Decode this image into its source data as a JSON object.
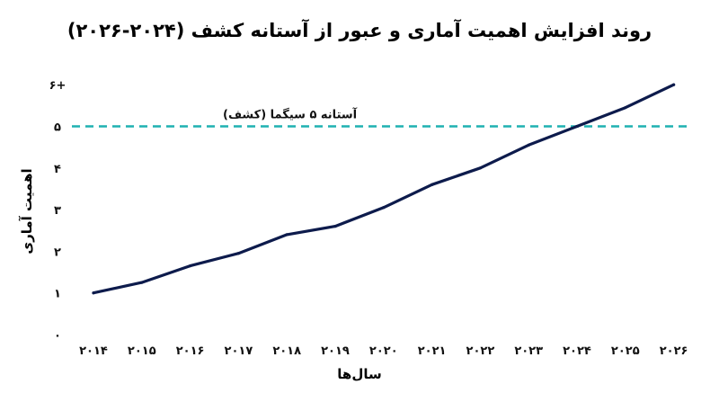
{
  "chart_data": {
    "type": "line",
    "title": "روند افزایش اهمیت آماری و عبور از آستانه کشف (۲۰۲۴-۲۰۲۶)",
    "xlabel": "سال‌ها",
    "ylabel": "اهمیت آماری",
    "x": [
      2014,
      2015,
      2016,
      2017,
      2018,
      2019,
      2020,
      2021,
      2022,
      2023,
      2024,
      2025,
      2026
    ],
    "x_tick_labels": [
      "۲۰۱۴",
      "۲۰۱۵",
      "۲۰۱۶",
      "۲۰۱۷",
      "۲۰۱۸",
      "۲۰۱۹",
      "۲۰۲۰",
      "۲۰۲۱",
      "۲۰۲۲",
      "۲۰۲۳",
      "۲۰۲۴",
      "۲۰۲۵",
      "۲۰۲۶"
    ],
    "y_ticks": [
      0,
      1,
      2,
      3,
      4,
      5,
      6
    ],
    "y_tick_labels": [
      "۰",
      "۱",
      "۲",
      "۳",
      "۴",
      "۵",
      "۶+"
    ],
    "ylim": [
      0,
      6
    ],
    "series": [
      {
        "values": [
          1.0,
          1.25,
          1.65,
          1.95,
          2.4,
          2.6,
          3.05,
          3.6,
          4.0,
          4.55,
          5.0,
          5.45,
          6.0
        ],
        "color": "#0d1b4c"
      }
    ],
    "threshold": {
      "value": 5,
      "label": "آستانه ۵ سیگما (کشف)",
      "color": "#1fb1b1",
      "style": "dashed"
    },
    "grid": false,
    "legend": "none"
  }
}
